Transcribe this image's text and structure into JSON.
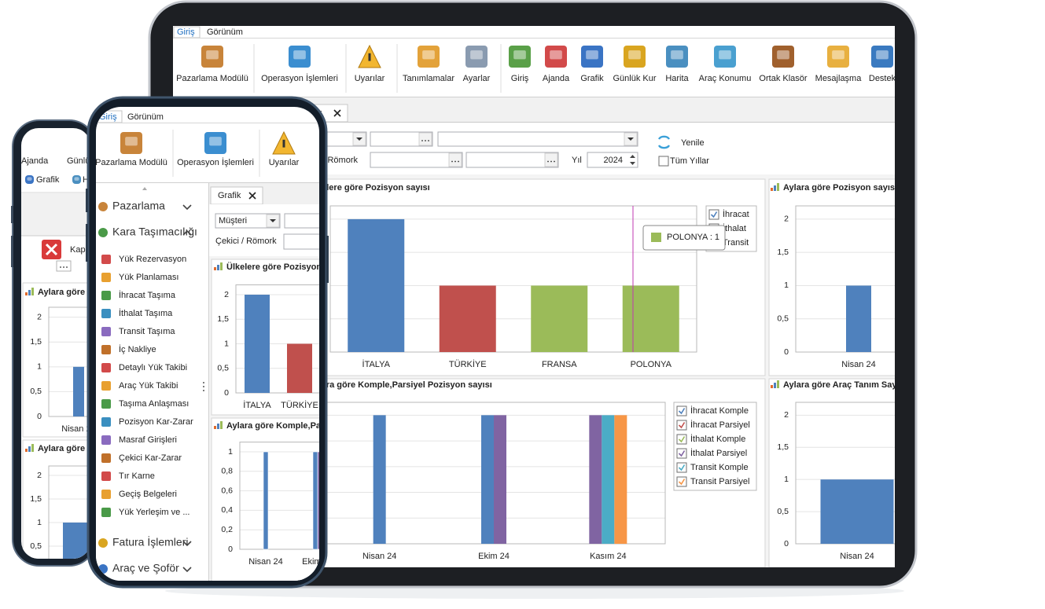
{
  "tablet": {
    "tabs": [
      "Giriş",
      "Görünüm"
    ],
    "ribbon": [
      "Pazarlama Modülü",
      "Operasyon İşlemleri",
      "Uyarılar",
      "Tanımlamalar",
      "Ayarlar",
      "Giriş",
      "Ajanda",
      "Grafik",
      "Günlük Kur",
      "Harita",
      "Araç Konumu",
      "Ortak Klasör",
      "Mesajlaşma",
      "Destek"
    ],
    "document_tab": "Grafik",
    "filters": {
      "customer": "Müşteri",
      "tractor_trailer": "Çekici / Römork",
      "year_label": "Yıl",
      "year": "2024",
      "refresh": "Yenile",
      "all_years": "Tüm Yıllar"
    },
    "tooltip": "POLONYA : 1"
  },
  "phone": {
    "tabs": [
      "Giriş",
      "Görünüm"
    ],
    "ribbon": [
      "Pazarlama Modülü",
      "Operasyon İşlemleri",
      "Uyarılar"
    ],
    "menu": [
      {
        "label": "Pazarlama"
      },
      {
        "label": "Kara Taşımacılığı",
        "items": [
          "Yük Rezervasyon",
          "Yük Planlaması",
          "İhracat Taşıma",
          "İthalat Taşıma",
          "Transit Taşıma",
          "İç Nakliye",
          "Detaylı Yük Takibi",
          "Araç Yük Takibi",
          "Taşıma Anlaşması",
          "Pozisyon Kar-Zarar",
          "Masraf Girişleri",
          "Çekici Kar-Zarar",
          "Tır Karne",
          "Geçiş Belgeleri",
          "Yük Yerleşim ve ..."
        ]
      },
      {
        "label": "Fatura İşlemleri"
      },
      {
        "label": "Araç ve Şoför"
      }
    ],
    "document_tab": "Grafik",
    "filters": {
      "customer": "Müşteri",
      "tractor_trailer": "Çekici / Römork"
    }
  },
  "back_phone": {
    "ribbon": [
      "Ajanda",
      "Günlük Kur",
      "Grafik",
      "Harita"
    ],
    "close": "Kapat"
  },
  "chart_data": [
    {
      "type": "bar",
      "title": "Ülkelere göre Pozisyon sayısı",
      "categories": [
        "İTALYA",
        "TÜRKİYE",
        "FRANSA",
        "POLONYA"
      ],
      "series": [
        {
          "name": "İhracat",
          "color": "#4f81bd",
          "values": [
            2,
            null,
            null,
            null
          ]
        },
        {
          "name": "İthalat",
          "color": "#c0504d",
          "values": [
            null,
            1,
            null,
            null
          ]
        },
        {
          "name": "Transit",
          "color": "#9bbb59",
          "values": [
            null,
            null,
            1,
            1
          ]
        }
      ],
      "ylim": [
        0,
        2.2
      ],
      "yticks": [
        0,
        {
          "value": 0.5,
          "label": "0,5"
        },
        1,
        {
          "value": 1.5,
          "label": "1,5"
        },
        2
      ],
      "grid": true
    },
    {
      "type": "bar",
      "title": "Aylara göre Pozisyon sayısı",
      "categories": [
        "Nisan 24"
      ],
      "values": [
        1
      ],
      "color": "#4f81bd",
      "ylim": [
        0,
        2.2
      ],
      "yticks": [
        0,
        {
          "value": 0.5,
          "label": "0,5"
        },
        1,
        {
          "value": 1.5,
          "label": "1,5"
        },
        2
      ],
      "grid": true
    },
    {
      "type": "bar",
      "title": "Aylara göre Komple,Parsiyel Pozisyon sayısı",
      "categories": [
        "Nisan 24",
        "Ekim 24",
        "Kasım 24"
      ],
      "series": [
        {
          "name": "İhracat Komple",
          "color": "#4f81bd",
          "values": [
            1,
            1,
            null
          ]
        },
        {
          "name": "İhracat Parsiyel",
          "color": "#c0504d",
          "values": [
            null,
            null,
            null
          ]
        },
        {
          "name": "İthalat Komple",
          "color": "#9bbb59",
          "values": [
            null,
            null,
            null
          ]
        },
        {
          "name": "İthalat Parsiyel",
          "color": "#8064a2",
          "values": [
            null,
            1,
            1
          ]
        },
        {
          "name": "Transit Komple",
          "color": "#4bacc6",
          "values": [
            null,
            null,
            1
          ]
        },
        {
          "name": "Transit Parsiyel",
          "color": "#f79646",
          "values": [
            null,
            null,
            1
          ]
        }
      ],
      "ylim": [
        0,
        1.1
      ],
      "yticks": [
        0,
        {
          "value": 0.2,
          "label": "0,2"
        },
        {
          "value": 0.4,
          "label": "0,4"
        },
        {
          "value": 0.6,
          "label": "0,6"
        },
        {
          "value": 0.8,
          "label": "0,8"
        },
        1
      ],
      "grid": true
    },
    {
      "type": "bar",
      "title": "Aylara göre Araç Tanım Sayısı",
      "categories": [
        "Nisan 24"
      ],
      "values": [
        1
      ],
      "color": "#4f81bd",
      "ylim": [
        0,
        2.2
      ],
      "yticks": [
        0,
        {
          "value": 0.5,
          "label": "0,5"
        },
        1,
        {
          "value": 1.5,
          "label": "1,5"
        },
        2
      ],
      "grid": true
    }
  ]
}
